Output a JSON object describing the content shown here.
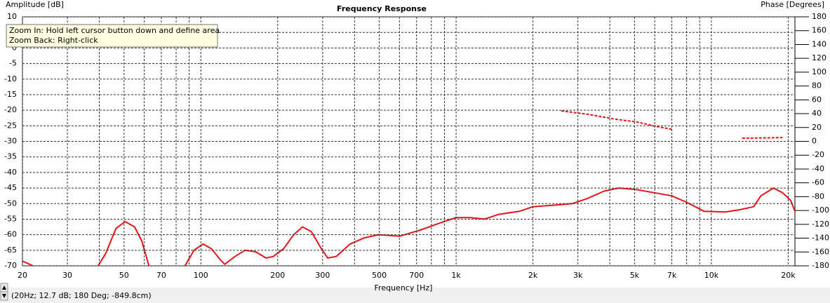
{
  "chart_data": {
    "type": "line",
    "title": "Frequency Response",
    "ylabel": "Amplitude [dB]",
    "y2label": "Phase [Degrees]",
    "xlabel": "Frequency [Hz]",
    "log_x": true,
    "grid": true,
    "xlim": [
      20,
      21250
    ],
    "ylim": [
      -70,
      10
    ],
    "y2lim": [
      -180,
      180
    ],
    "xticks": [
      20,
      30,
      50,
      70,
      100,
      200,
      300,
      500,
      700,
      {
        "value": 1000,
        "label": "1k"
      },
      {
        "value": 2000,
        "label": "2k"
      },
      {
        "value": 3000,
        "label": "3k"
      },
      {
        "value": 5000,
        "label": "5k"
      },
      {
        "value": 7000,
        "label": "7k"
      },
      {
        "value": 10000,
        "label": "10k"
      },
      {
        "value": 20000,
        "label": "20k"
      }
    ],
    "xgrid": [
      20,
      30,
      40,
      50,
      60,
      70,
      80,
      90,
      100,
      200,
      300,
      400,
      500,
      600,
      700,
      800,
      900,
      1000,
      2000,
      3000,
      4000,
      5000,
      6000,
      7000,
      8000,
      9000,
      10000,
      20000
    ],
    "yticks": [
      10,
      5,
      0,
      -5,
      -10,
      -15,
      -20,
      -25,
      -30,
      -35,
      -40,
      -45,
      -50,
      -55,
      -60,
      -65,
      -70
    ],
    "y2ticks": [
      180,
      160,
      140,
      120,
      100,
      80,
      60,
      40,
      20,
      0,
      -20,
      -40,
      -60,
      -80,
      -100,
      -120,
      -140,
      -160,
      -180
    ],
    "series": [
      {
        "color": "#e8141a",
        "dash": false,
        "x": [
          20,
          22,
          null,
          39.6,
          42.4,
          46.5,
          50.5,
          55,
          58.7,
          62.6,
          null,
          86.6,
          94,
          102,
          110,
          119,
          124,
          136,
          149,
          164,
          180,
          192,
          211,
          231,
          250,
          271,
          294,
          314,
          339,
          384,
          437,
          497,
          600,
          724,
          880,
          1000,
          1135,
          1290,
          1465,
          1770,
          2000,
          2430,
          2850,
          3240,
          3800,
          4330,
          5080,
          5960,
          6990,
          7950,
          9380,
          11340,
          12880,
          14640,
          15630,
          17500,
          19000,
          20460,
          21250
        ],
        "values": [
          -68.5,
          -70,
          null,
          -70,
          -66,
          -58,
          -55.8,
          -57.5,
          -62,
          -70,
          null,
          -70,
          -65,
          -63,
          -64.5,
          -68,
          -69.5,
          -67,
          -65,
          -65.5,
          -67.5,
          -67,
          -64.5,
          -60,
          -57.5,
          -59,
          -64,
          -67.5,
          -67,
          -63,
          -61,
          -60,
          -60.5,
          -58.5,
          -56,
          -54.5,
          -54.5,
          -55,
          -53.5,
          -52.5,
          -51,
          -50.5,
          -50,
          -48.5,
          -46,
          -45,
          -45.5,
          -46.5,
          -47.5,
          -49.5,
          -52.5,
          -52.7,
          -52,
          -51,
          -47.5,
          -45,
          -46.5,
          -49,
          -52.5
        ]
      },
      {
        "color": "#e8141a",
        "dash": true,
        "axis": "y2",
        "x": [
          2580,
          3300,
          4200,
          5100,
          6000,
          7080,
          null,
          13200,
          16500,
          19000
        ],
        "values": [
          44,
          39,
          32,
          28,
          22,
          17,
          null,
          4.6,
          5,
          5.5
        ]
      }
    ]
  },
  "tooltip": {
    "line1": "Zoom In:  Hold left cursor button down and define area",
    "line2": "Zoom Back: Right-click"
  },
  "status": "(20Hz; 12.7 dB; 180 Deg; -849.8cm)"
}
